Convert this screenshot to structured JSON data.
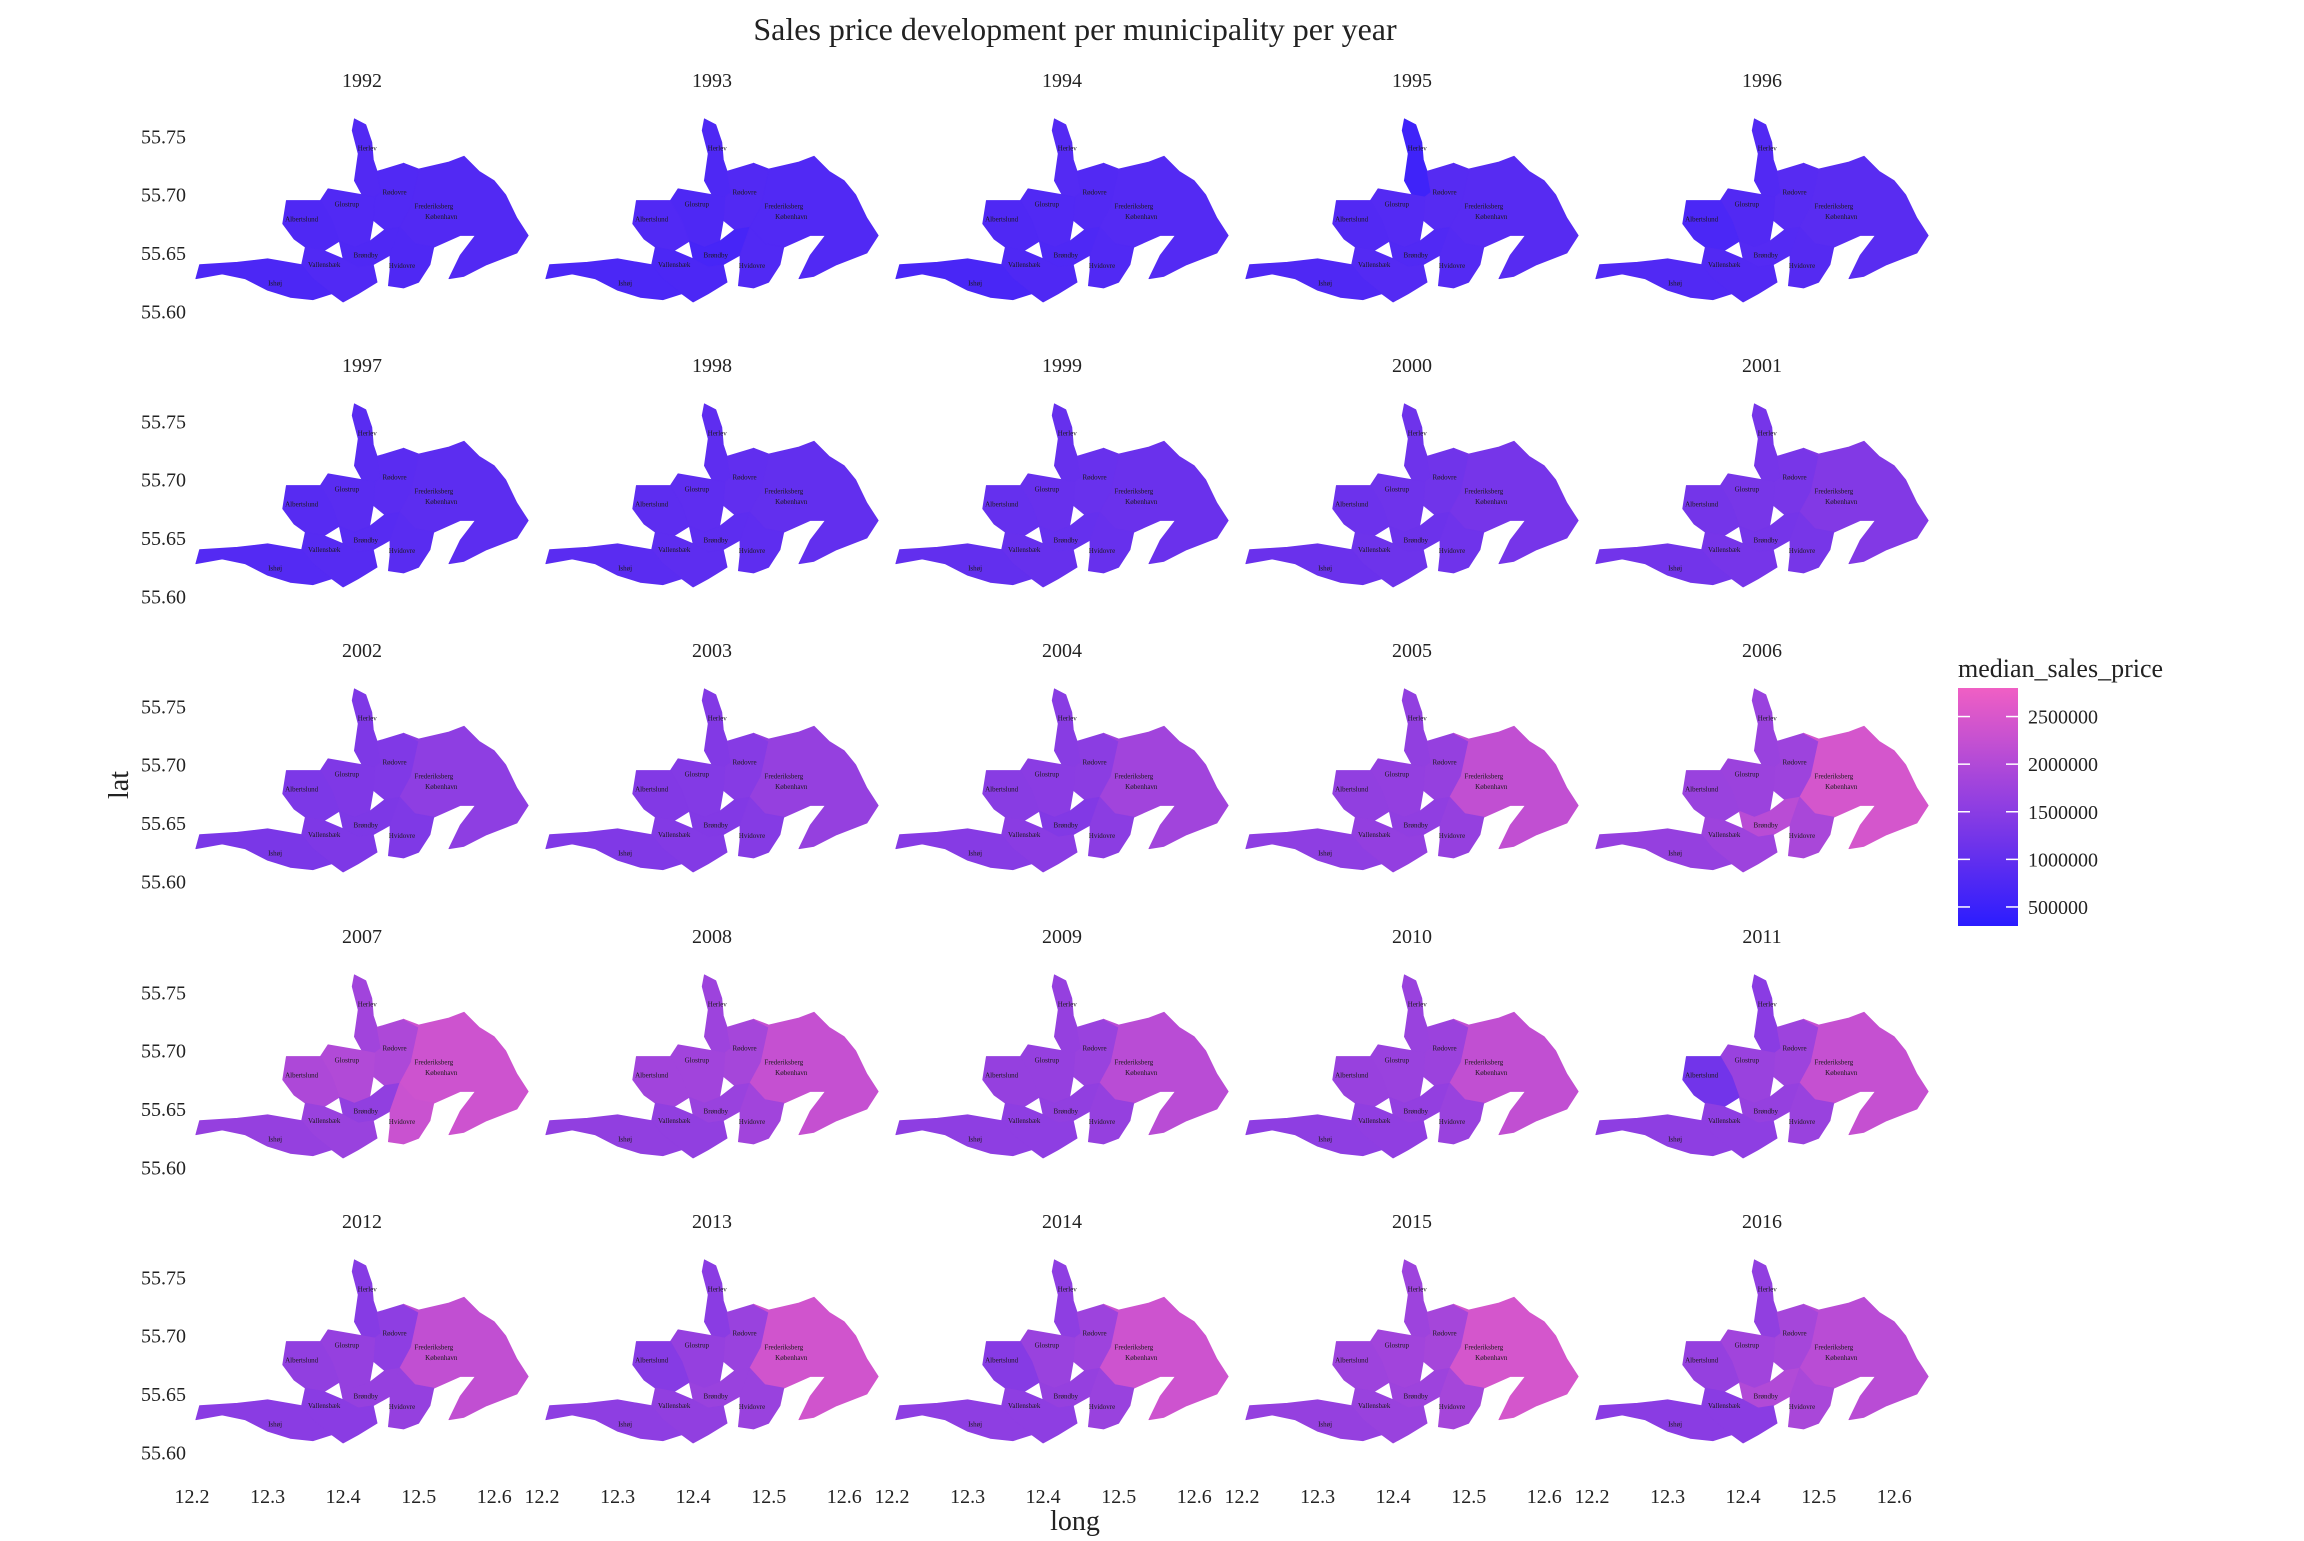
{
  "chart_data": {
    "type": "heatmap",
    "subtype": "faceted choropleth map",
    "title": "Sales price development per municipality per year",
    "xlabel": "long",
    "ylabel": "lat",
    "x_ticks": [
      "12.2",
      "12.3",
      "12.4",
      "12.5",
      "12.6"
    ],
    "y_ticks": [
      "55.75",
      "55.70",
      "55.65",
      "55.60"
    ],
    "xlim": [
      12.2,
      12.65
    ],
    "ylim": [
      55.59,
      55.77
    ],
    "grid": false,
    "legend": {
      "title": "median_sales_price",
      "position": "right",
      "range": [
        300000,
        2800000
      ],
      "ticks": [
        "2500000",
        "2000000",
        "1500000",
        "1000000",
        "500000"
      ],
      "tick_values": [
        2500000,
        2000000,
        1500000,
        1000000,
        500000
      ],
      "color_low": "#2b1cff",
      "color_high": "#f05fc4"
    },
    "municipalities": [
      "Herlev",
      "Rødovre",
      "Glostrup",
      "Frederiksberg",
      "Albertslund",
      "København",
      "Brøndby",
      "Vallensbæk",
      "Hvidovre",
      "Ishøj"
    ],
    "facets": [
      {
        "year": "1992",
        "values": {
          "Herlev": 800000,
          "Rødovre": 780000,
          "Glostrup": 780000,
          "Frederiksberg": 650000,
          "Albertslund": 760000,
          "København": 800000,
          "Brøndby": 760000,
          "Vallensbæk": 780000,
          "Hvidovre": 760000,
          "Ishøj": 720000
        }
      },
      {
        "year": "1993",
        "values": {
          "Herlev": 750000,
          "Rødovre": 800000,
          "Glostrup": 750000,
          "Frederiksberg": 680000,
          "Albertslund": 780000,
          "København": 780000,
          "Brøndby": 650000,
          "Vallensbæk": 720000,
          "Hvidovre": 780000,
          "Ishøj": 700000
        }
      },
      {
        "year": "1994",
        "values": {
          "Herlev": 820000,
          "Rødovre": 800000,
          "Glostrup": 780000,
          "Frederiksberg": 700000,
          "Albertslund": 760000,
          "København": 820000,
          "Brøndby": 740000,
          "Vallensbæk": 760000,
          "Hvidovre": 780000,
          "Ishøj": 680000
        }
      },
      {
        "year": "1995",
        "values": {
          "Herlev": 550000,
          "Rødovre": 850000,
          "Glostrup": 820000,
          "Frederiksberg": 720000,
          "Albertslund": 800000,
          "København": 860000,
          "Brøndby": 780000,
          "Vallensbæk": 820000,
          "Hvidovre": 820000,
          "Ishøj": 760000
        }
      },
      {
        "year": "1996",
        "values": {
          "Herlev": 800000,
          "Rødovre": 860000,
          "Glostrup": 800000,
          "Frederiksberg": 750000,
          "Albertslund": 700000,
          "København": 880000,
          "Brøndby": 820000,
          "Vallensbæk": 800000,
          "Hvidovre": 830000,
          "Ishøj": 780000
        }
      },
      {
        "year": "1997",
        "values": {
          "Herlev": 880000,
          "Rødovre": 900000,
          "Glostrup": 880000,
          "Frederiksberg": 820000,
          "Albertslund": 860000,
          "København": 920000,
          "Brøndby": 860000,
          "Vallensbæk": 850000,
          "Hvidovre": 880000,
          "Ishøj": 820000
        }
      },
      {
        "year": "1998",
        "values": {
          "Herlev": 950000,
          "Rødovre": 980000,
          "Glostrup": 950000,
          "Frederiksberg": 850000,
          "Albertslund": 930000,
          "København": 1000000,
          "Brøndby": 930000,
          "Vallensbæk": 940000,
          "Hvidovre": 950000,
          "Ishøj": 900000
        }
      },
      {
        "year": "1999",
        "values": {
          "Herlev": 1050000,
          "Rødovre": 1080000,
          "Glostrup": 1060000,
          "Frederiksberg": 950000,
          "Albertslund": 1040000,
          "København": 1100000,
          "Brøndby": 1040000,
          "Vallensbæk": 1050000,
          "Hvidovre": 1060000,
          "Ishøj": 1000000
        }
      },
      {
        "year": "2000",
        "values": {
          "Herlev": 1150000,
          "Rødovre": 1180000,
          "Glostrup": 1150000,
          "Frederiksberg": 1000000,
          "Albertslund": 1120000,
          "København": 1250000,
          "Brøndby": 1130000,
          "Vallensbæk": 1140000,
          "Hvidovre": 1160000,
          "Ishøj": 1100000
        }
      },
      {
        "year": "2001",
        "values": {
          "Herlev": 1250000,
          "Rødovre": 1280000,
          "Glostrup": 1260000,
          "Frederiksberg": 1150000,
          "Albertslund": 1230000,
          "København": 1400000,
          "Brøndby": 1240000,
          "Vallensbæk": 1250000,
          "Hvidovre": 1270000,
          "Ishøj": 1200000
        }
      },
      {
        "year": "2002",
        "values": {
          "Herlev": 1350000,
          "Rødovre": 1380000,
          "Glostrup": 1360000,
          "Frederiksberg": 1400000,
          "Albertslund": 1330000,
          "København": 1550000,
          "Brøndby": 1340000,
          "Vallensbæk": 1350000,
          "Hvidovre": 1370000,
          "Ishøj": 1300000
        }
      },
      {
        "year": "2003",
        "values": {
          "Herlev": 1400000,
          "Rødovre": 1450000,
          "Glostrup": 1420000,
          "Frederiksberg": 1550000,
          "Albertslund": 1400000,
          "København": 1650000,
          "Brøndby": 1400000,
          "Vallensbæk": 1420000,
          "Hvidovre": 1440000,
          "Ishøj": 1380000
        }
      },
      {
        "year": "2004",
        "values": {
          "Herlev": 1480000,
          "Rødovre": 1520000,
          "Glostrup": 1500000,
          "Frederiksberg": 1700000,
          "Albertslund": 1480000,
          "København": 1800000,
          "Brøndby": 1400000,
          "Vallensbæk": 1500000,
          "Hvidovre": 1520000,
          "Ishøj": 1450000
        }
      },
      {
        "year": "2005",
        "values": {
          "Herlev": 1600000,
          "Rødovre": 1650000,
          "Glostrup": 1620000,
          "Frederiksberg": 1900000,
          "Albertslund": 1600000,
          "København": 2200000,
          "Brøndby": 1580000,
          "Vallensbæk": 1620000,
          "Hvidovre": 1640000,
          "Ishøj": 1550000
        }
      },
      {
        "year": "2006",
        "values": {
          "Herlev": 1700000,
          "Rødovre": 1750000,
          "Glostrup": 1720000,
          "Frederiksberg": 2100000,
          "Albertslund": 1700000,
          "København": 2450000,
          "Brøndby": 2100000,
          "Vallensbæk": 1750000,
          "Hvidovre": 1900000,
          "Ishøj": 1650000
        }
      },
      {
        "year": "2007",
        "values": {
          "Herlev": 1800000,
          "Rødovre": 1950000,
          "Glostrup": 2000000,
          "Frederiksberg": 2150000,
          "Albertslund": 1950000,
          "København": 2350000,
          "Brøndby": 1600000,
          "Vallensbæk": 1700000,
          "Hvidovre": 2300000,
          "Ishøj": 1650000
        }
      },
      {
        "year": "2008",
        "values": {
          "Herlev": 1750000,
          "Rødovre": 1850000,
          "Glostrup": 1800000,
          "Frederiksberg": 2050000,
          "Albertslund": 1800000,
          "København": 2250000,
          "Brøndby": 1700000,
          "Vallensbæk": 1600000,
          "Hvidovre": 1800000,
          "Ishøj": 1600000
        }
      },
      {
        "year": "2009",
        "values": {
          "Herlev": 1650000,
          "Rødovre": 1700000,
          "Glostrup": 1650000,
          "Frederiksberg": 1950000,
          "Albertslund": 1650000,
          "København": 2100000,
          "Brøndby": 1600000,
          "Vallensbæk": 1550000,
          "Hvidovre": 1650000,
          "Ishøj": 1550000
        }
      },
      {
        "year": "2010",
        "values": {
          "Herlev": 1700000,
          "Rødovre": 1720000,
          "Glostrup": 1700000,
          "Frederiksberg": 2050000,
          "Albertslund": 1680000,
          "København": 2200000,
          "Brøndby": 1620000,
          "Vallensbæk": 1580000,
          "Hvidovre": 1700000,
          "Ishøj": 1550000
        }
      },
      {
        "year": "2011",
        "values": {
          "Herlev": 1500000,
          "Rødovre": 1750000,
          "Glostrup": 1700000,
          "Frederiksberg": 2100000,
          "Albertslund": 1200000,
          "København": 2250000,
          "Brøndby": 1650000,
          "Vallensbæk": 1550000,
          "Hvidovre": 1700000,
          "Ishøj": 1550000
        }
      },
      {
        "year": "2012",
        "values": {
          "Herlev": 1450000,
          "Rødovre": 1550000,
          "Glostrup": 1650000,
          "Frederiksberg": 2100000,
          "Albertslund": 1600000,
          "København": 2200000,
          "Brøndby": 1650000,
          "Vallensbæk": 1500000,
          "Hvidovre": 1650000,
          "Ishøj": 1500000
        }
      },
      {
        "year": "2013",
        "values": {
          "Herlev": 1500000,
          "Rødovre": 1700000,
          "Glostrup": 1650000,
          "Frederiksberg": 2300000,
          "Albertslund": 1450000,
          "København": 2400000,
          "Brøndby": 1700000,
          "Vallensbæk": 1600000,
          "Hvidovre": 1700000,
          "Ishøj": 1550000
        }
      },
      {
        "year": "2014",
        "values": {
          "Herlev": 1550000,
          "Rødovre": 1750000,
          "Glostrup": 1700000,
          "Frederiksberg": 2200000,
          "Albertslund": 1450000,
          "København": 2350000,
          "Brøndby": 1650000,
          "Vallensbæk": 1550000,
          "Hvidovre": 1700000,
          "Ishøj": 1550000
        }
      },
      {
        "year": "2015",
        "values": {
          "Herlev": 1750000,
          "Rødovre": 1850000,
          "Glostrup": 1800000,
          "Frederiksberg": 2300000,
          "Albertslund": 1750000,
          "København": 2450000,
          "Brøndby": 1750000,
          "Vallensbæk": 1700000,
          "Hvidovre": 1850000,
          "Ishøj": 1650000
        }
      },
      {
        "year": "2016",
        "values": {
          "Herlev": 1600000,
          "Rødovre": 1850000,
          "Glostrup": 1800000,
          "Frederiksberg": 2150000,
          "Albertslund": 1650000,
          "København": 2100000,
          "Brøndby": 2000000,
          "Vallensbæk": 1500000,
          "Hvidovre": 1900000,
          "Ishøj": 1500000
        }
      }
    ]
  }
}
